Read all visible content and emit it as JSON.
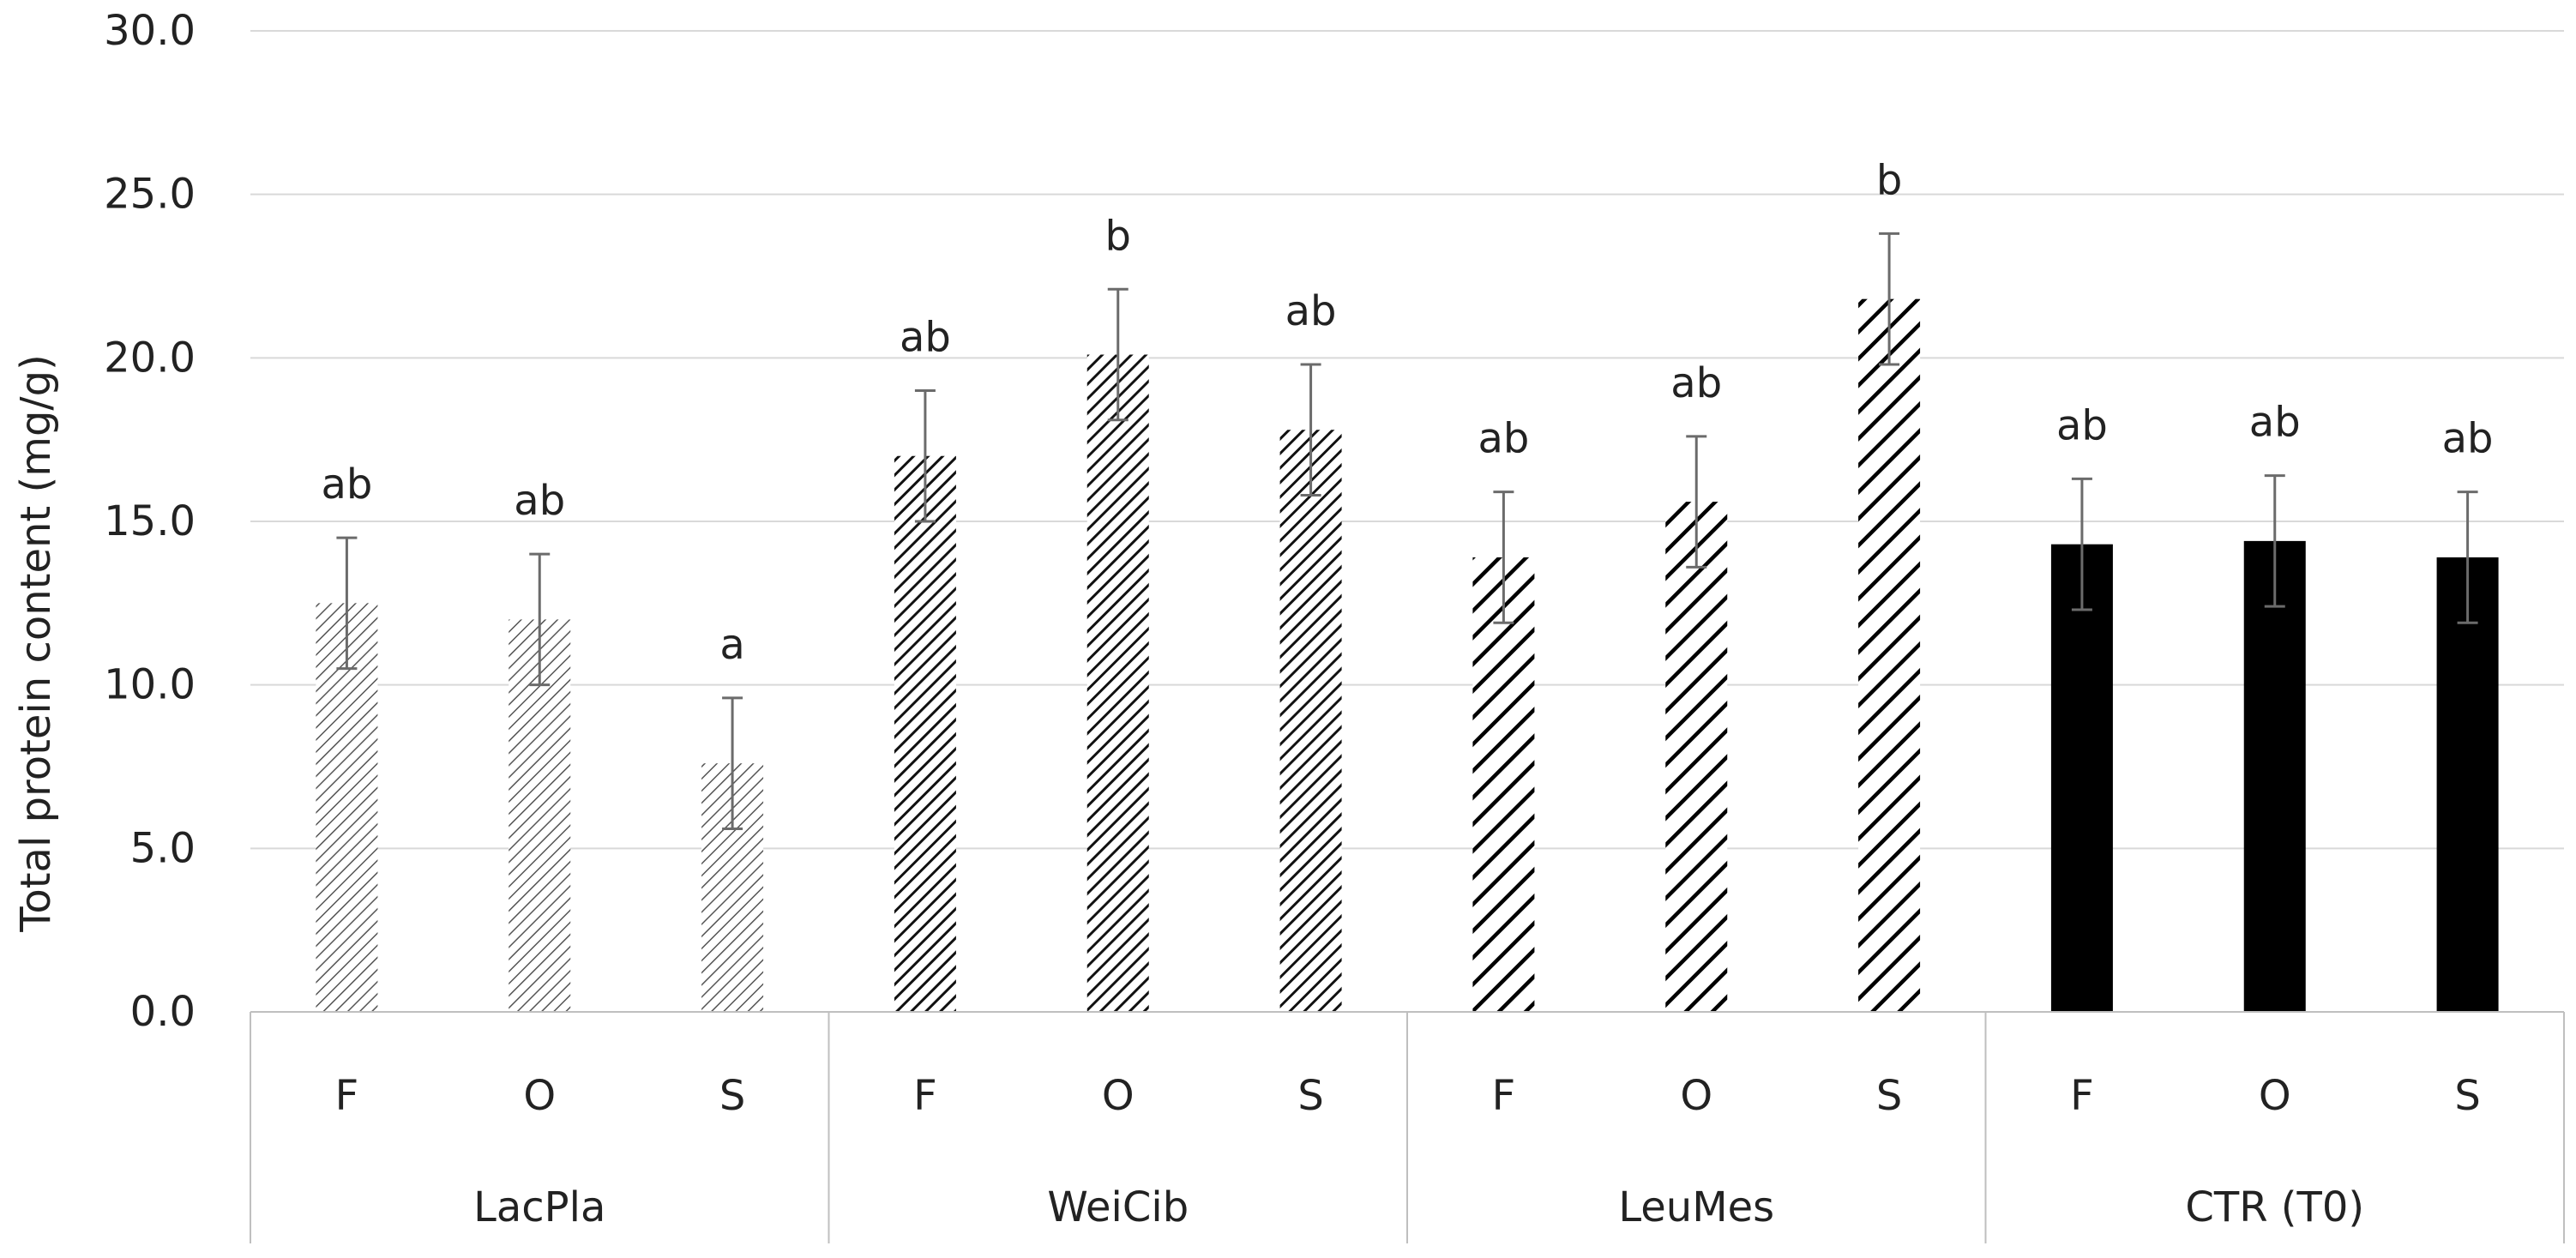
{
  "chart_data": {
    "type": "bar",
    "ylabel": "Total protein content (mg/g)",
    "ylim": [
      0,
      30
    ],
    "yticks": [
      "0.0",
      "5.0",
      "10.0",
      "15.0",
      "20.0",
      "25.0",
      "30.0"
    ],
    "grid": true,
    "groups": [
      {
        "name": "LacPla",
        "pattern": "light-hatch",
        "bars": [
          {
            "category": "F",
            "value": 12.5,
            "error": 2.0,
            "significance": "ab"
          },
          {
            "category": "O",
            "value": 12.0,
            "error": 2.0,
            "significance": "ab"
          },
          {
            "category": "S",
            "value": 7.6,
            "error": 2.0,
            "significance": "a"
          }
        ]
      },
      {
        "name": "WeiCib",
        "pattern": "dense-hatch",
        "bars": [
          {
            "category": "F",
            "value": 17.0,
            "error": 2.0,
            "significance": "ab"
          },
          {
            "category": "O",
            "value": 20.1,
            "error": 2.0,
            "significance": "b"
          },
          {
            "category": "S",
            "value": 17.8,
            "error": 2.0,
            "significance": "ab"
          }
        ]
      },
      {
        "name": "LeuMes",
        "pattern": "wide-hatch",
        "bars": [
          {
            "category": "F",
            "value": 13.9,
            "error": 2.0,
            "significance": "ab"
          },
          {
            "category": "O",
            "value": 15.6,
            "error": 2.0,
            "significance": "ab"
          },
          {
            "category": "S",
            "value": 21.8,
            "error": 2.0,
            "significance": "b"
          }
        ]
      },
      {
        "name": "CTR (T0)",
        "pattern": "solid",
        "bars": [
          {
            "category": "F",
            "value": 14.3,
            "error": 2.0,
            "significance": "ab"
          },
          {
            "category": "O",
            "value": 14.4,
            "error": 2.0,
            "significance": "ab"
          },
          {
            "category": "S",
            "value": 13.9,
            "error": 2.0,
            "significance": "ab"
          }
        ]
      }
    ]
  }
}
